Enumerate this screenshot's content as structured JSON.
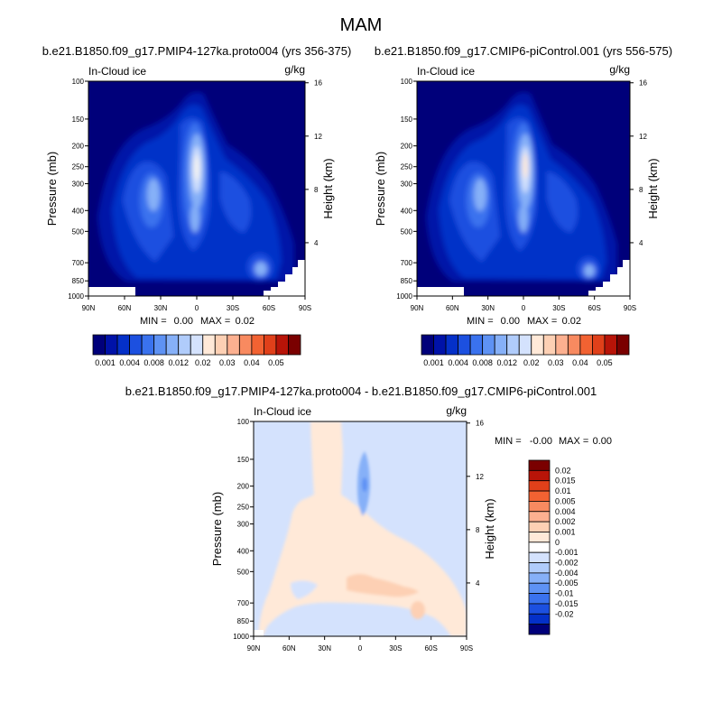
{
  "main_title": "MAM",
  "colors": {
    "blues": [
      "#00007a",
      "#0012a8",
      "#0430c8",
      "#1c50e0",
      "#3a72ee",
      "#5e92f4",
      "#86b0f8",
      "#b0ccfb",
      "#d4e2fd"
    ],
    "reds": [
      "#ffe9d8",
      "#fdd0b4",
      "#fcb090",
      "#f88a60",
      "#f26232",
      "#e0401a",
      "#b81408",
      "#7a0000"
    ],
    "diff_scale": [
      "#00007a",
      "#0430c8",
      "#1c50e0",
      "#3a72ee",
      "#5e92f4",
      "#86b0f8",
      "#b0ccfb",
      "#d4e2fd",
      "#ffffff",
      "#ffe9d8",
      "#fdd0b4",
      "#fcb090",
      "#f88a60",
      "#f26232",
      "#e0401a",
      "#b81408",
      "#7a0000"
    ]
  },
  "chart_data": [
    {
      "type": "heatmap",
      "title": "b.e21.B1850.f09_g17.PMIP4-127ka.proto004 (yrs 356-375)",
      "left_string": "In-Cloud ice",
      "right_string": "g/kg",
      "ylabel": "Pressure (mb)",
      "ylabel_right": "Height (km)",
      "x_ticks": [
        "90N",
        "60N",
        "30N",
        "0",
        "30S",
        "60S",
        "90S"
      ],
      "y_ticks": [
        "100",
        "150",
        "200",
        "250",
        "300",
        "400",
        "500",
        "700",
        "850",
        "1000"
      ],
      "y_right_ticks": [
        "16",
        "12",
        "8",
        "4"
      ],
      "stats": {
        "min_label": "MIN =",
        "min": "0.00",
        "max_label": "MAX =",
        "max": "0.02"
      },
      "colorbar_labels": [
        "0.001",
        "0.004",
        "0.008",
        "0.012",
        "0.02",
        "0.03",
        "0.04",
        "0.05"
      ],
      "colorbar_levels": 16
    },
    {
      "type": "heatmap",
      "title": "b.e21.B1850.f09_g17.CMIP6-piControl.001 (yrs 556-575)",
      "left_string": "In-Cloud ice",
      "right_string": "g/kg",
      "ylabel": "Pressure (mb)",
      "ylabel_right": "Height (km)",
      "x_ticks": [
        "90N",
        "60N",
        "30N",
        "0",
        "30S",
        "60S",
        "90S"
      ],
      "y_ticks": [
        "100",
        "150",
        "200",
        "250",
        "300",
        "400",
        "500",
        "700",
        "850",
        "1000"
      ],
      "y_right_ticks": [
        "16",
        "12",
        "8",
        "4"
      ],
      "stats": {
        "min_label": "MIN =",
        "min": "0.00",
        "max_label": "MAX =",
        "max": "0.02"
      },
      "colorbar_labels": [
        "0.001",
        "0.004",
        "0.008",
        "0.012",
        "0.02",
        "0.03",
        "0.04",
        "0.05"
      ],
      "colorbar_levels": 16
    },
    {
      "type": "heatmap",
      "title": "b.e21.B1850.f09_g17.PMIP4-127ka.proto004 - b.e21.B1850.f09_g17.CMIP6-piControl.001",
      "left_string": "In-Cloud ice",
      "right_string": "g/kg",
      "ylabel": "Pressure (mb)",
      "ylabel_right": "Height (km)",
      "x_ticks": [
        "90N",
        "60N",
        "30N",
        "0",
        "30S",
        "60S",
        "90S"
      ],
      "y_ticks": [
        "100",
        "150",
        "200",
        "250",
        "300",
        "400",
        "500",
        "700",
        "850",
        "1000"
      ],
      "y_right_ticks": [
        "16",
        "12",
        "8",
        "4"
      ],
      "stats": {
        "min_label": "MIN =",
        "min": "-0.00",
        "max_label": "MAX =",
        "max": "0.00"
      },
      "colorbar_labels": [
        "0.02",
        "0.015",
        "0.01",
        "0.005",
        "0.004",
        "0.002",
        "0.001",
        "0",
        "-0.001",
        "-0.002",
        "-0.004",
        "-0.005",
        "-0.01",
        "-0.015",
        "-0.02"
      ]
    }
  ]
}
